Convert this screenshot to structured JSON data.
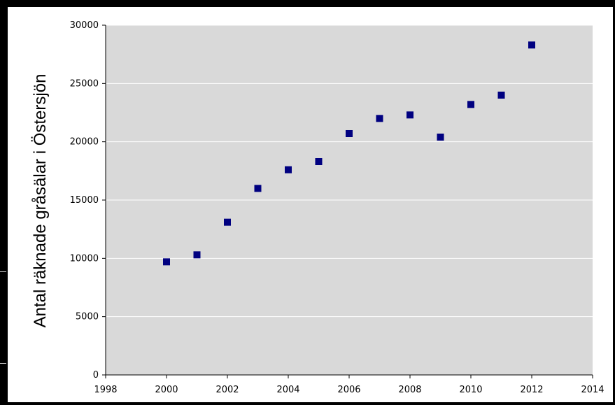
{
  "colors": {
    "frame": "#000000",
    "plot_background": "#d9d9d9",
    "gridline": "#ffffff",
    "marker": "#000080"
  },
  "chart_data": {
    "type": "scatter",
    "title": "",
    "xlabel": "",
    "ylabel": "Antal räknade gråsälar i Östersjön",
    "xlim": [
      1998,
      2014
    ],
    "ylim": [
      0,
      30000
    ],
    "x_ticks": [
      "1998",
      "2000",
      "2002",
      "2004",
      "2006",
      "2008",
      "2010",
      "2012",
      "2014"
    ],
    "y_ticks": [
      "0",
      "5000",
      "10000",
      "15000",
      "20000",
      "25000",
      "30000"
    ],
    "grid": "horizontal",
    "legend": "none",
    "marker": "square",
    "series": [
      {
        "x": [
          2000,
          2001,
          2002,
          2003,
          2004,
          2005,
          2006,
          2007,
          2008,
          2009,
          2010,
          2011,
          2012
        ],
        "y": [
          9700,
          10300,
          13100,
          16000,
          17600,
          18300,
          20700,
          22000,
          22300,
          20400,
          23200,
          24000,
          28300
        ]
      }
    ]
  }
}
